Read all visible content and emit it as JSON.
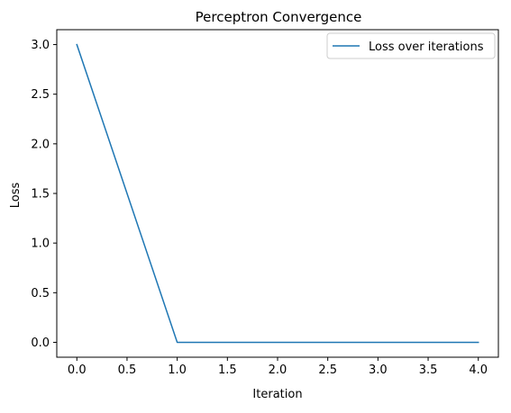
{
  "chart_data": {
    "type": "line",
    "title": "Perceptron Convergence",
    "xlabel": "Iteration",
    "ylabel": "Loss",
    "xlim": [
      -0.2,
      4.2
    ],
    "ylim": [
      -0.15,
      3.15
    ],
    "xticks": [
      0.0,
      0.5,
      1.0,
      1.5,
      2.0,
      2.5,
      3.0,
      3.5,
      4.0
    ],
    "xtick_labels": [
      "0.0",
      "0.5",
      "1.0",
      "1.5",
      "2.0",
      "2.5",
      "3.0",
      "3.5",
      "4.0"
    ],
    "yticks": [
      0.0,
      0.5,
      1.0,
      1.5,
      2.0,
      2.5,
      3.0
    ],
    "ytick_labels": [
      "0.0",
      "0.5",
      "1.0",
      "1.5",
      "2.0",
      "2.5",
      "3.0"
    ],
    "grid": false,
    "legend_position": "top-right",
    "series": [
      {
        "name": "Loss over iterations",
        "color": "#1f77b4",
        "x": [
          0,
          1,
          2,
          3,
          4
        ],
        "y": [
          3.0,
          0.0,
          0.0,
          0.0,
          0.0
        ]
      }
    ]
  }
}
